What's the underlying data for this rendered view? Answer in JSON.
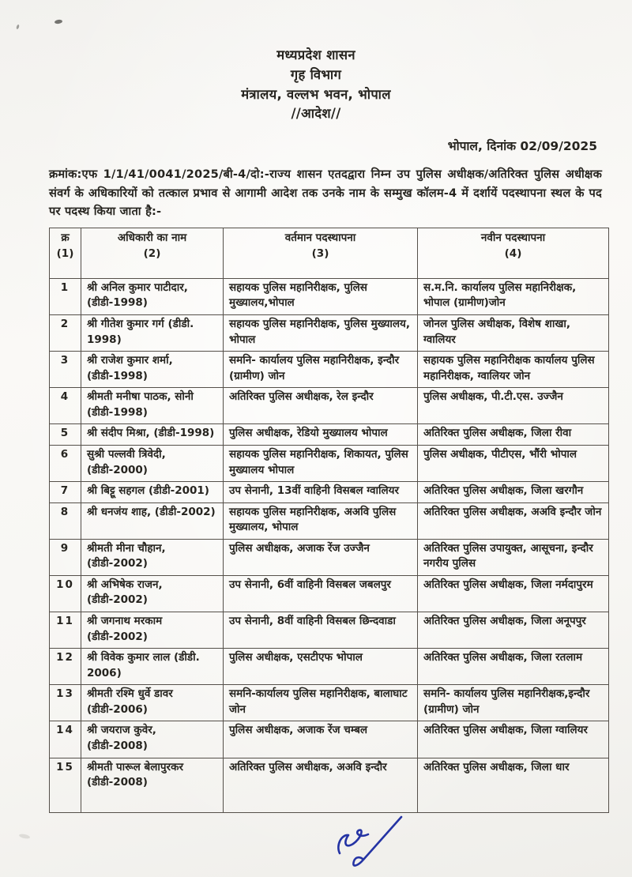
{
  "document": {
    "letterhead": [
      "मध्यप्रदेश शासन",
      "गृह विभाग",
      "मंत्रालय, वल्लभ भवन, भोपाल",
      "//आदेश//"
    ],
    "place_date": "भोपाल, दिनांक 02/09/2025",
    "order_text": "क्रमांक:एफ 1/1/41/0041/2025/बी-4/दो:-राज्य शासन एतदद्वारा निम्न उप पुलिस अधीक्षक/अतिरिक्त पुलिस अधीक्षक संवर्ग के अधिकारियों को तत्काल प्रभाव से आगामी आदेश तक उनके नाम के सम्मुख कॉलम-4 में दर्शायें पदस्थापना स्थल के पद पर पदस्थ किया जाता है:-"
  },
  "table": {
    "columns": [
      {
        "label": "क्र",
        "num": "(1)"
      },
      {
        "label": "अधिकारी का नाम",
        "num": "(2)"
      },
      {
        "label": "वर्तमान पदस्थापना",
        "num": "(3)"
      },
      {
        "label": "नवीन पदस्थापना",
        "num": "(4)"
      }
    ],
    "rows": [
      {
        "sn": "1",
        "name": "श्री अनिल कुमार पाटीदार, (डीडी-1998)",
        "current": "सहायक पुलिस महानिरीक्षक, पुलिस मुख्यालय,भोपाल",
        "new": "स.म.नि. कार्यालय पुलिस महानिरीक्षक, भोपाल (ग्रामीण)जोन"
      },
      {
        "sn": "2",
        "name": "श्री गीतेश कुमार गर्ग (डीडी. 1998)",
        "current": "सहायक पुलिस महानिरीक्षक, पुलिस मुख्यालय, भोपाल",
        "new": "जोनल पुलिस अधीक्षक, विशेष शाखा, ग्वालियर"
      },
      {
        "sn": "3",
        "name": "श्री राजेश कुमार शर्मा, (डीडी-1998)",
        "current": "समनि- कार्यालय पुलिस महानिरीक्षक, इन्दौर (ग्रामीण) जोन",
        "new": "सहायक पुलिस महानिरीक्षक कार्यालय पुलिस महानिरीक्षक, ग्वालियर जोन"
      },
      {
        "sn": "4",
        "name": "श्रीमती मनीषा पाठक, सोनी (डीडी-1998)",
        "current": "अतिरिक्त पुलिस अधीक्षक, रेल इन्दौर",
        "new": "पुलिस अधीक्षक, पी.टी.एस. उज्जैन"
      },
      {
        "sn": "5",
        "name": "श्री संदीप मिश्रा, (डीडी-1998)",
        "current": "पुलिस अधीक्षक, रेडियो मुख्यालय भोपाल",
        "new": "अतिरिक्त पुलिस अधीक्षक, जिला रीवा"
      },
      {
        "sn": "6",
        "name": "सुश्री पल्लवी त्रिवेदी, (डीडी-2000)",
        "current": "सहायक पुलिस महानिरीक्षक, शिकायत, पुलिस मुख्यालय भोपाल",
        "new": "पुलिस अधीक्षक, पीटीएस, भौंरी भोपाल"
      },
      {
        "sn": "7",
        "name": "श्री बिट्टू सहगल (डीडी-2001)",
        "current": "उप सेनानी, 13वीं वाहिनी विसबल ग्वालियर",
        "new": "अतिरिक्त पुलिस अधीक्षक, जिला खरगौन"
      },
      {
        "sn": "8",
        "name": "श्री धनजंय शाह, (डीडी-2002)",
        "current": "सहायक पुलिस महानिरीक्षक, अअवि पुलिस मुख्यालय, भोपाल",
        "new": "अतिरिक्त पुलिस अधीक्षक, अअवि इन्दौर जोन"
      },
      {
        "sn": "9",
        "name": "श्रीमती मीना चौहान, (डीडी-2002)",
        "current": "पुलिस अधीक्षक, अजाक रेंज उज्जैन",
        "new": "अतिरिक्त पुलिस उपायुक्त, आसूचना, इन्दौर नगरीय पुलिस"
      },
      {
        "sn": "10",
        "name": "श्री अभिषेक राजन, (डीडी-2002)",
        "current": "उप सेनानी, 6वीं वाहिनी विसबल जबलपुर",
        "new": "अतिरिक्त पुलिस अधीक्षक, जिला नर्मदापुरम"
      },
      {
        "sn": "11",
        "name": "श्री जगनाथ मरकाम (डीडी-2002)",
        "current": "उप सेनानी, 8वीं वाहिनी विसबल छिन्दवाडा",
        "new": "अतिरिक्त पुलिस अधीक्षक, जिला अनूपपुर"
      },
      {
        "sn": "12",
        "name": "श्री विवेक कुमार लाल (डीडी. 2006)",
        "current": "पुलिस अधीक्षक, एसटीएफ भोपाल",
        "new": "अतिरिक्त पुलिस अधीक्षक, जिला रतलाम"
      },
      {
        "sn": "13",
        "name": "श्रीमती रश्मि धुर्वे डावर (डीडी-2006)",
        "current": "समनि-कार्यालय पुलिस महानिरीक्षक, बालाघाट जोन",
        "new": "समनि- कार्यालय पुलिस महानिरीक्षक,इन्दौर (ग्रामीण) जोन"
      },
      {
        "sn": "14",
        "name": "श्री जयराज कुवेर, (डीडी-2008)",
        "current": "पुलिस अधीक्षक, अजाक रेंज चम्बल",
        "new": "अतिरिक्त पुलिस अधीक्षक, जिला ग्वालियर"
      },
      {
        "sn": "15",
        "name": "श्रीमती पारूल बेलापुरकर (डीडी-2008)",
        "current": "अतिरिक्त पुलिस अधीक्षक, अअवि इन्दौर",
        "new": "अतिरिक्त पुलिस अधीक्षक, जिला धार"
      }
    ]
  },
  "icons": {
    "signature": "handwritten-signature-blue-ink",
    "ink_marks": "stray-ink-dots"
  },
  "colors": {
    "ink": "#26241f",
    "table_border": "#55504a",
    "signature_ink": "#2433a4",
    "paper": "#f7f6f3"
  }
}
